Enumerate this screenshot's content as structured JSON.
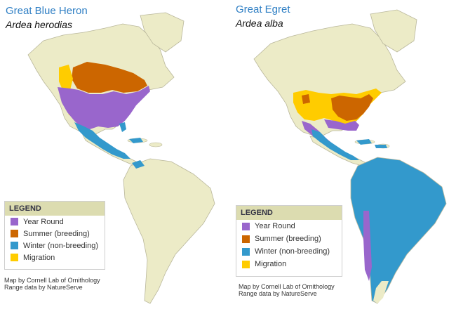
{
  "colors": {
    "land": "#ecebc7",
    "border": "#b9b79b",
    "year_round": "#9966cc",
    "summer": "#cc6600",
    "winter": "#3399cc",
    "migration": "#ffcc00"
  },
  "maps": [
    {
      "common_name": "Great Blue Heron",
      "scientific_name": "Ardea herodias",
      "legend": {
        "title": "LEGEND",
        "items": [
          {
            "label": "Year Round",
            "color": "#9966cc"
          },
          {
            "label": "Summer (breeding)",
            "color": "#cc6600"
          },
          {
            "label": "Winter (non-breeding)",
            "color": "#3399cc"
          },
          {
            "label": "Migration",
            "color": "#ffcc00"
          }
        ]
      },
      "credit_line1": "Map by Cornell Lab of Ornithology",
      "credit_line2": "Range data by NatureServe"
    },
    {
      "common_name": "Great Egret",
      "scientific_name": "Ardea alba",
      "legend": {
        "title": "LEGEND",
        "items": [
          {
            "label": "Year Round",
            "color": "#9966cc"
          },
          {
            "label": "Summer (breeding)",
            "color": "#cc6600"
          },
          {
            "label": "Winter (non-breeding)",
            "color": "#3399cc"
          },
          {
            "label": "Migration",
            "color": "#ffcc00"
          }
        ]
      },
      "credit_line1": "Map by Cornell Lab of Ornithology",
      "credit_line2": "Range data by NatureServe"
    }
  ]
}
